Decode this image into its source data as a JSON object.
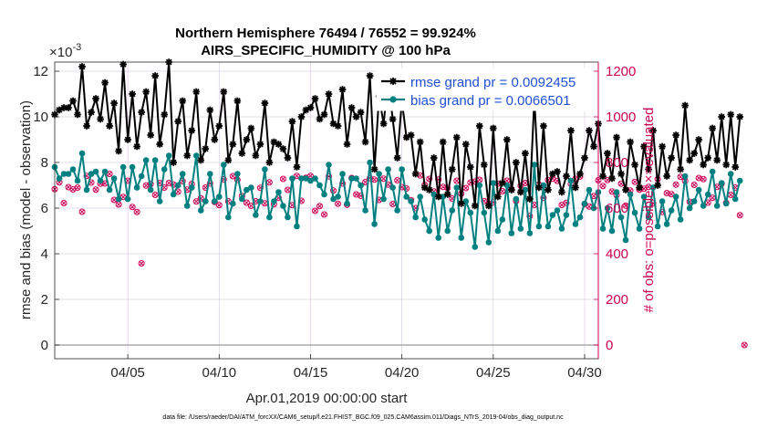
{
  "chart_data": {
    "type": "line",
    "title_line1": "Northern Hemisphere 76494 / 76552 = 99.924%",
    "title_line2": "AIRS_SPECIFIC_HUMIDITY @ 100 hPa",
    "xlabel": "Apr.01,2019 00:00:00 start",
    "ylabel_left": "rmse and bias (model - observation)",
    "ylabel_right": "# of obs: o=possible; ×=evaluated",
    "exponent_label": "×10",
    "exponent_power": "-3",
    "xlim": [
      1.0,
      30.75
    ],
    "ylim_left": [
      -0.6,
      12.4
    ],
    "ylim_right": [
      -60,
      1240
    ],
    "x_ticks": [
      5,
      10,
      15,
      20,
      25,
      30
    ],
    "x_tick_labels": [
      "04/05",
      "04/10",
      "04/15",
      "04/20",
      "04/25",
      "04/30"
    ],
    "y_left_ticks": [
      0,
      2,
      4,
      6,
      8,
      10,
      12
    ],
    "y_left_tick_labels": [
      "0",
      "2",
      "4",
      "6",
      "8",
      "10",
      "12"
    ],
    "y_right_ticks": [
      0,
      200,
      400,
      600,
      800,
      1000,
      1200
    ],
    "y_right_tick_labels": [
      "0",
      "200",
      "400",
      "600",
      "800",
      "1000",
      "1200"
    ],
    "colors": {
      "rmse": "#000000",
      "bias": "#008080",
      "obs": "#cc0055",
      "zero_line": "#aaaaaa",
      "grid": "#ddcce0",
      "right_axis": "#cc0055"
    },
    "x_start": 1.0,
    "x_step": 0.25,
    "series": [
      {
        "name": "rmse",
        "label": "rmse grand pr = 0.0092455",
        "values": [
          10.1,
          10.3,
          10.4,
          10.4,
          10.7,
          10.1,
          12.2,
          9.6,
          10.2,
          10.8,
          9.9,
          11.5,
          9.6,
          10.6,
          8.5,
          12.3,
          9.0,
          11.0,
          8.7,
          10.2,
          11.1,
          9.2,
          11.8,
          8.8,
          10.1,
          12.4,
          8.0,
          9.8,
          10.7,
          8.3,
          9.4,
          11.1,
          8.1,
          8.6,
          10.3,
          9.0,
          9.6,
          11.1,
          8.1,
          8.8,
          10.7,
          8.4,
          9.0,
          9.5,
          8.3,
          8.8,
          10.6,
          8.0,
          8.9,
          8.8,
          8.6,
          8.2,
          9.8,
          7.8,
          10.0,
          10.3,
          10.4,
          10.8,
          9.9,
          10.1,
          11.0,
          9.7,
          9.6,
          11.2,
          8.8,
          10.4,
          10.0,
          10.2,
          8.9,
          11.8,
          7.7,
          10.9,
          9.7,
          11.6,
          9.9,
          8.2,
          10.7,
          9.1,
          9.2,
          7.5,
          8.9,
          6.9,
          6.8,
          8.2,
          6.5,
          8.9,
          6.6,
          7.7,
          9.1,
          6.2,
          8.8,
          7.8,
          6.1,
          9.6,
          7.9,
          6.1,
          9.5,
          6.5,
          7.1,
          9.0,
          6.8,
          8.0,
          6.7,
          8.4,
          6.4,
          10.8,
          6.9,
          9.6,
          6.8,
          7.5,
          7.6,
          6.7,
          7.4,
          9.4,
          6.9,
          7.5,
          8.2,
          9.4,
          8.7,
          9.7,
          7.4,
          8.4,
          7.3,
          9.1,
          7.5,
          6.8,
          8.9,
          7.9,
          6.9,
          8.7,
          7.7,
          9.4,
          7.0,
          8.7,
          7.4,
          8.2,
          9.2,
          7.7,
          10.5,
          8.1,
          8.4,
          9.0,
          7.9,
          8.2,
          9.5,
          8.1,
          10.0,
          7.9,
          10.1,
          7.8,
          10.0
        ]
      },
      {
        "name": "bias",
        "label": "bias grand pr = 0.0066501",
        "values": [
          7.8,
          7.3,
          7.5,
          7.5,
          7.7,
          7.2,
          8.4,
          6.8,
          7.5,
          7.6,
          7.2,
          7.6,
          6.8,
          7.3,
          6.4,
          7.8,
          6.4,
          7.8,
          6.9,
          7.4,
          8.1,
          6.8,
          8.1,
          6.3,
          7.7,
          8.3,
          6.6,
          7.0,
          7.5,
          6.1,
          6.9,
          8.3,
          5.9,
          6.3,
          7.5,
          6.3,
          6.5,
          7.9,
          5.6,
          6.2,
          7.5,
          6.4,
          6.8,
          6.9,
          5.7,
          6.3,
          7.7,
          5.6,
          6.3,
          6.7,
          6.1,
          5.6,
          7.3,
          5.2,
          7.3,
          7.3,
          7.2,
          7.3,
          7.0,
          6.6,
          7.9,
          6.4,
          6.5,
          7.5,
          6.2,
          7.3,
          7.3,
          7.0,
          5.9,
          8.0,
          5.3,
          7.5,
          6.4,
          7.7,
          6.9,
          5.9,
          7.7,
          6.5,
          6.3,
          5.6,
          6.5,
          5.5,
          5.0,
          6.6,
          4.7,
          6.5,
          5.0,
          5.9,
          6.9,
          4.7,
          6.3,
          5.8,
          4.3,
          7.0,
          5.8,
          4.5,
          7.1,
          5.0,
          5.5,
          7.0,
          4.9,
          6.4,
          5.1,
          6.8,
          4.9,
          7.9,
          5.2,
          7.0,
          5.2,
          5.7,
          5.9,
          5.1,
          5.7,
          7.2,
          5.3,
          5.6,
          6.2,
          6.8,
          6.0,
          6.7,
          5.1,
          6.0,
          5.0,
          6.7,
          5.6,
          4.6,
          6.6,
          5.8,
          5.1,
          6.5,
          5.6,
          6.9,
          5.2,
          6.3,
          5.3,
          5.9,
          6.5,
          5.5,
          7.4,
          6.0,
          6.3,
          6.8,
          6.1,
          6.6,
          7.6,
          6.1,
          7.1,
          6.2,
          7.5,
          6.4,
          7.2
        ]
      },
      {
        "name": "obs",
        "label": "# of obs",
        "values": [
          683,
          713,
          622,
          692,
          682,
          690,
          584,
          741,
          712,
          681,
          707,
          708,
          750,
          636,
          616,
          649,
          720,
          605,
          583,
          358,
          699,
          705,
          658,
          710,
          690,
          710,
          703,
          672,
          718,
          681,
          706,
          629,
          643,
          690,
          708,
          627,
          613,
          726,
          630,
          740,
          724,
          653,
          624,
          610,
          630,
          689,
          621,
          713,
          617,
          645,
          728,
          680,
          613,
          741,
          632,
          733,
          741,
          588,
          609,
          572,
          739,
          677,
          619,
          708,
          615,
          732,
          660,
          654,
          714,
          731,
          725,
          636,
          729,
          703,
          618,
          722,
          692,
          686,
          635,
          600,
          743,
          702,
          728,
          673,
          725,
          693,
          688,
          642,
          720,
          663,
          688,
          712,
          716,
          724,
          631,
          619,
          625,
          707,
          674,
          720,
          683,
          631,
          698,
          710,
          565,
          614,
          703,
          645,
          723,
          729,
          719,
          614,
          623,
          706,
          728,
          738,
          618,
          607,
          653,
          722,
          697,
          723,
          673,
          657,
          707,
          611,
          677,
          715,
          681,
          685,
          693,
          621,
          727,
          583,
          666,
          661,
          703,
          737,
          719,
          628,
          702,
          732,
          727,
          624,
          645,
          693,
          707,
          623,
          658,
          690,
          569,
          0
        ]
      }
    ]
  },
  "footnote": "data file: /Users/raeder/DAI/ATM_forcXX/CAM6_setup/f.e21.FHIST_BGC.f09_025.CAM6assim.011/Diags_NTrS_2019-04/obs_diag_output.nc"
}
